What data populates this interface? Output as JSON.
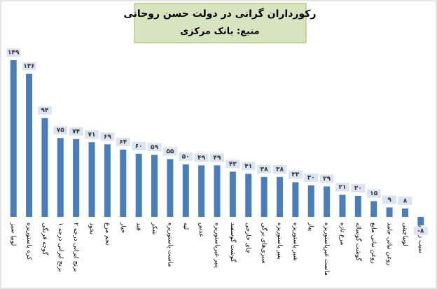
{
  "chart_data": {
    "type": "bar",
    "title": "رکورداران گرانی در دولت حسن روحانی",
    "subtitle": "منبع: بانک مرکزی",
    "categories": [
      "لوبیا سبز",
      "کره پاستوریزه",
      "گوجه فرنگی",
      "برنج ایرانی درجه ۱",
      "برنج ایرانی درجه ۲",
      "نخود",
      "تخم مرغ",
      "خیار",
      "قند",
      "شکر",
      "ماست پاستوریزه",
      "لپه",
      "عدس",
      "پنیر غیرپاستوریزه",
      "گوشت گوسفند",
      "چای خارجی",
      "سبزی‌های برگی",
      "پنیر پاستوریزه",
      "شیر پاستوریزه",
      "پیاز",
      "ماست غیرپاستوریزه",
      "مرغ تازه",
      "گوشت گوساله",
      "روغن نباتی مایع",
      "روغن نباتی جامد",
      "لوبیاچیتی",
      "سیب زمینی"
    ],
    "values": [
      149,
      136,
      94,
      75,
      74,
      71,
      69,
      64,
      60,
      59,
      55,
      50,
      49,
      49,
      43,
      41,
      38,
      38,
      33,
      30,
      29,
      21,
      20,
      15,
      9,
      8,
      -8
    ],
    "value_labels": [
      "۱۴۹",
      "۱۳۶",
      "۹۴",
      "۷۵",
      "۷۴",
      "۷۱",
      "۶۹",
      "۶۴",
      "۶۰",
      "۵۹",
      "۵۵",
      "۵۰",
      "۴۹",
      "۴۹",
      "۴۳",
      "۴۱",
      "۳۸",
      "۳۸",
      "۳۳",
      "۳۰",
      "۲۹",
      "۲۱",
      "۲۰",
      "۱۵",
      "۹",
      "۸",
      "-۸"
    ],
    "color": "#4a7ebb"
  }
}
